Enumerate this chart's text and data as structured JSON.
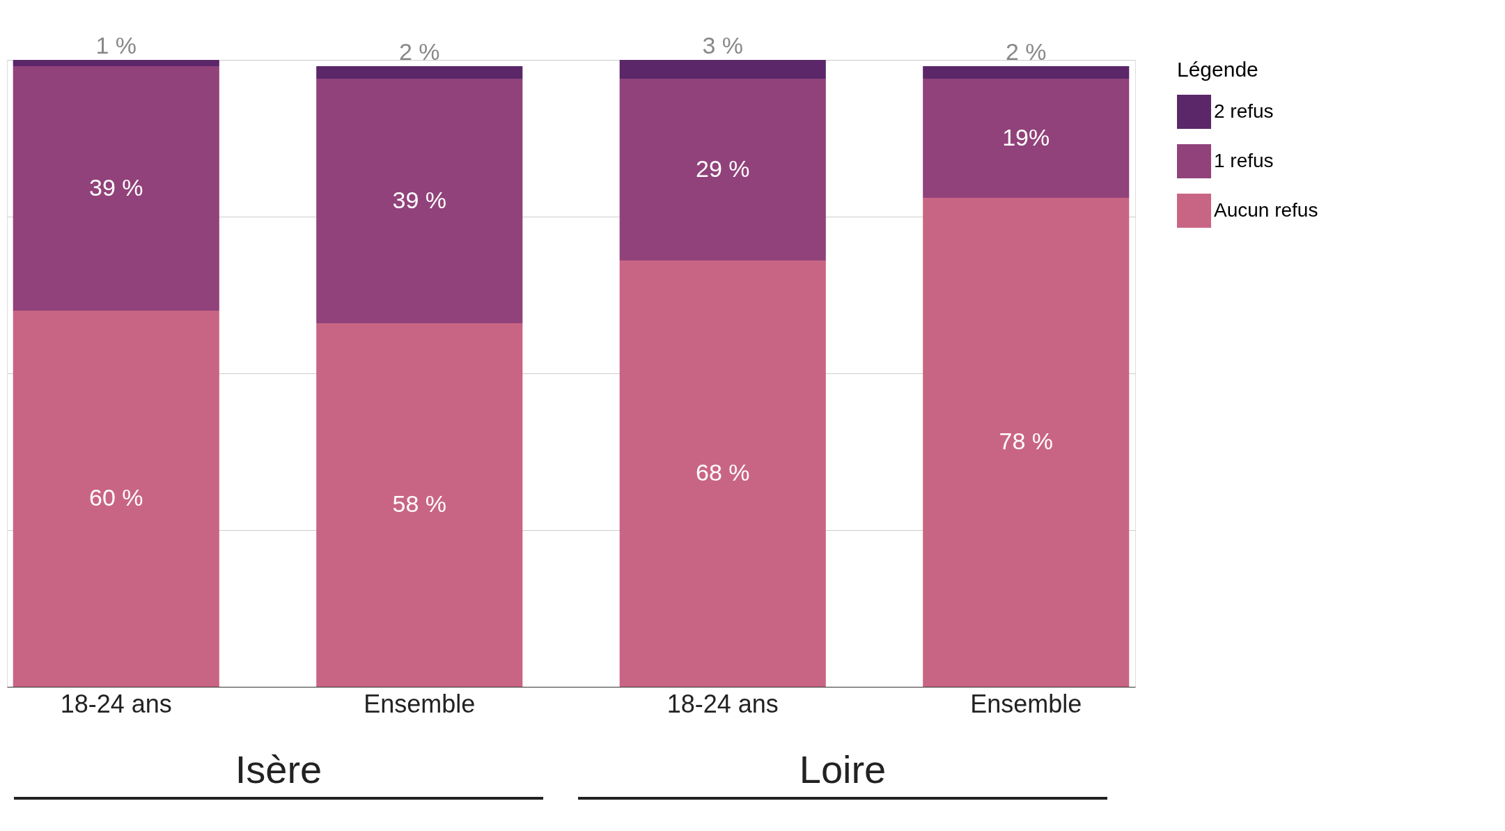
{
  "chart_data": {
    "type": "bar",
    "stacked": true,
    "categories": [
      "18-24 ans",
      "Ensemble",
      "18-24 ans",
      "Ensemble"
    ],
    "series": [
      {
        "name": "Aucun refus",
        "color": "#c96584",
        "values": [
          60,
          58,
          68,
          78
        ],
        "value_labels": [
          "60 %",
          "58 %",
          "68 %",
          "78 %"
        ]
      },
      {
        "name": "1 refus",
        "color": "#91427a",
        "values": [
          39,
          39,
          29,
          19
        ],
        "value_labels": [
          "39 %",
          "39 %",
          "29 %",
          "19%"
        ]
      },
      {
        "name": "2 refus",
        "color": "#5b2769",
        "values": [
          1,
          2,
          3,
          2
        ],
        "value_labels": [
          "1 %",
          "2 %",
          "3 %",
          "2 %"
        ]
      }
    ],
    "ylim": [
      0,
      100
    ],
    "yticks": [
      {
        "value": 0,
        "label": null
      },
      {
        "value": 25,
        "label": null
      },
      {
        "value": 50,
        "label": null
      },
      {
        "value": 75,
        "label": null
      },
      {
        "value": 100,
        "label": null
      }
    ],
    "grid": "y",
    "tick_labels": "x",
    "legend": "right",
    "legend_title": "Légende",
    "annotations": [
      "Isère",
      "Loire"
    ]
  }
}
